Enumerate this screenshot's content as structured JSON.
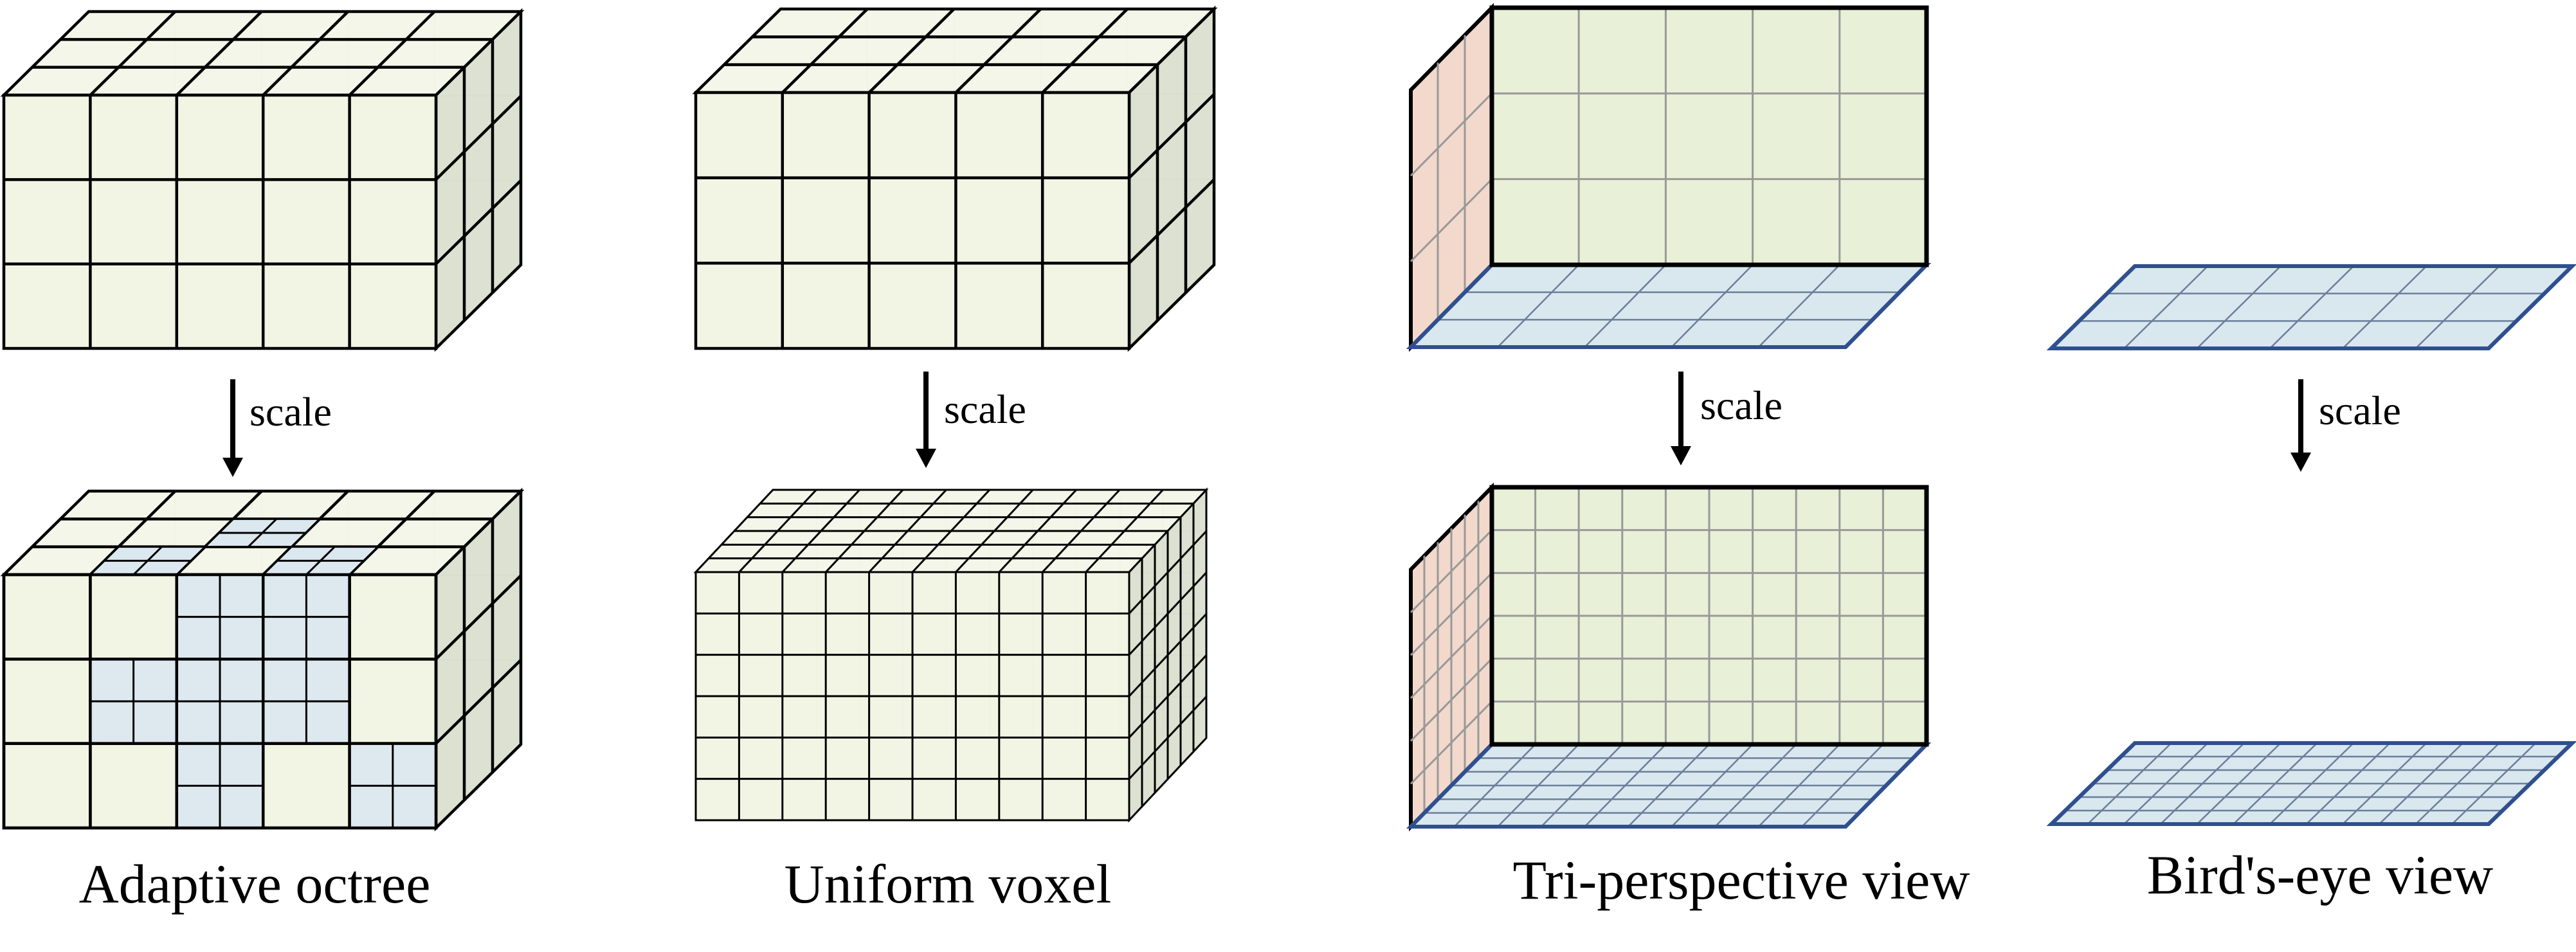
{
  "panels": [
    {
      "id": "adaptive-octree",
      "caption": "Adaptive octree",
      "arrow_label": "scale"
    },
    {
      "id": "uniform-voxel",
      "caption": "Uniform voxel",
      "arrow_label": "scale"
    },
    {
      "id": "tri-perspective-view",
      "caption": "Tri-perspective view",
      "arrow_label": "scale"
    },
    {
      "id": "birds-eye-view",
      "caption": "Bird's-eye view",
      "arrow_label": "scale"
    }
  ],
  "colors": {
    "front_face": "#f1f4e3",
    "side_face": "#dadfcf",
    "top_face": "#f3f5e8",
    "fine_cell": "#dce8ef",
    "tpv_front": "#e8f0d8",
    "tpv_side": "#f2d9cc",
    "plane": "#d9e7ef",
    "plane_edge": "#2f4f8f",
    "edge": "#000000",
    "grid": "#999999"
  }
}
